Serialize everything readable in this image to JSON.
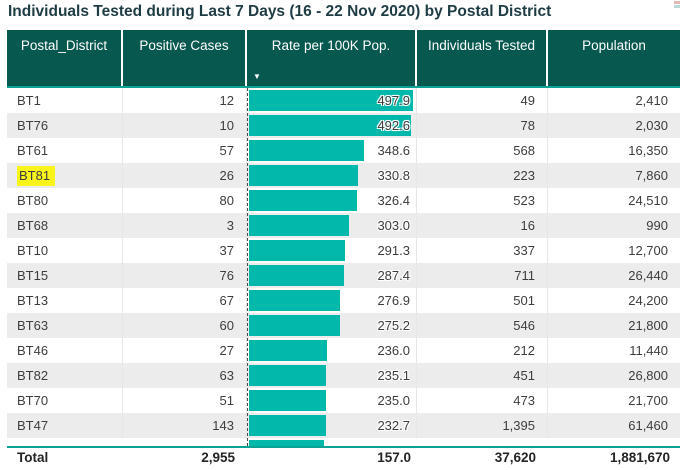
{
  "title": "Individuals Tested during Last 7 Days (16 - 22 Nov 2020) by Postal District",
  "colors": {
    "header_bg": "#07584f",
    "bar_teal": "#01b8aa",
    "alt_row": "#ececec",
    "teal_border": "#0aa294",
    "highlight_yellow": "#f9f51b"
  },
  "icons": {
    "sort_descending": "▼",
    "corner_fragment": "visual-header-icon-fragment"
  },
  "chart_data": {
    "type": "table",
    "title": "Individuals Tested during Last 7 Days (16 - 22 Nov 2020) by Postal District",
    "columns": [
      "Postal_District",
      "Positive Cases",
      "Rate per 100K Pop.",
      "Individuals Tested",
      "Population"
    ],
    "sort": {
      "column": "Rate per 100K Pop.",
      "direction": "descending"
    },
    "bar_column": "Rate per 100K Pop.",
    "bar_axis_max": 497.9,
    "rows": [
      {
        "district": "BT1",
        "positive": "12",
        "rate": 497.9,
        "rate_label": "497.9",
        "tested": "49",
        "population": "2,410",
        "highlighted": false
      },
      {
        "district": "BT76",
        "positive": "10",
        "rate": 492.6,
        "rate_label": "492.6",
        "tested": "78",
        "population": "2,030",
        "highlighted": false
      },
      {
        "district": "BT61",
        "positive": "57",
        "rate": 348.6,
        "rate_label": "348.6",
        "tested": "568",
        "population": "16,350",
        "highlighted": false
      },
      {
        "district": "BT81",
        "positive": "26",
        "rate": 330.8,
        "rate_label": "330.8",
        "tested": "223",
        "population": "7,860",
        "highlighted": true
      },
      {
        "district": "BT80",
        "positive": "80",
        "rate": 326.4,
        "rate_label": "326.4",
        "tested": "523",
        "population": "24,510",
        "highlighted": false
      },
      {
        "district": "BT68",
        "positive": "3",
        "rate": 303.0,
        "rate_label": "303.0",
        "tested": "16",
        "population": "990",
        "highlighted": false
      },
      {
        "district": "BT10",
        "positive": "37",
        "rate": 291.3,
        "rate_label": "291.3",
        "tested": "337",
        "population": "12,700",
        "highlighted": false
      },
      {
        "district": "BT15",
        "positive": "76",
        "rate": 287.4,
        "rate_label": "287.4",
        "tested": "711",
        "population": "26,440",
        "highlighted": false
      },
      {
        "district": "BT13",
        "positive": "67",
        "rate": 276.9,
        "rate_label": "276.9",
        "tested": "501",
        "population": "24,200",
        "highlighted": false
      },
      {
        "district": "BT63",
        "positive": "60",
        "rate": 275.2,
        "rate_label": "275.2",
        "tested": "546",
        "population": "21,800",
        "highlighted": false
      },
      {
        "district": "BT46",
        "positive": "27",
        "rate": 236.0,
        "rate_label": "236.0",
        "tested": "212",
        "population": "11,440",
        "highlighted": false
      },
      {
        "district": "BT82",
        "positive": "63",
        "rate": 235.1,
        "rate_label": "235.1",
        "tested": "451",
        "population": "26,800",
        "highlighted": false
      },
      {
        "district": "BT70",
        "positive": "51",
        "rate": 235.0,
        "rate_label": "235.0",
        "tested": "473",
        "population": "21,700",
        "highlighted": false
      },
      {
        "district": "BT47",
        "positive": "143",
        "rate": 232.7,
        "rate_label": "232.7",
        "tested": "1,395",
        "population": "61,460",
        "highlighted": false
      }
    ],
    "partial_row": {
      "bar_rate_estimate": 229.0
    },
    "total": {
      "label": "Total",
      "positive": "2,955",
      "rate_label": "157.0",
      "tested": "37,620",
      "population": "1,881,670"
    }
  }
}
